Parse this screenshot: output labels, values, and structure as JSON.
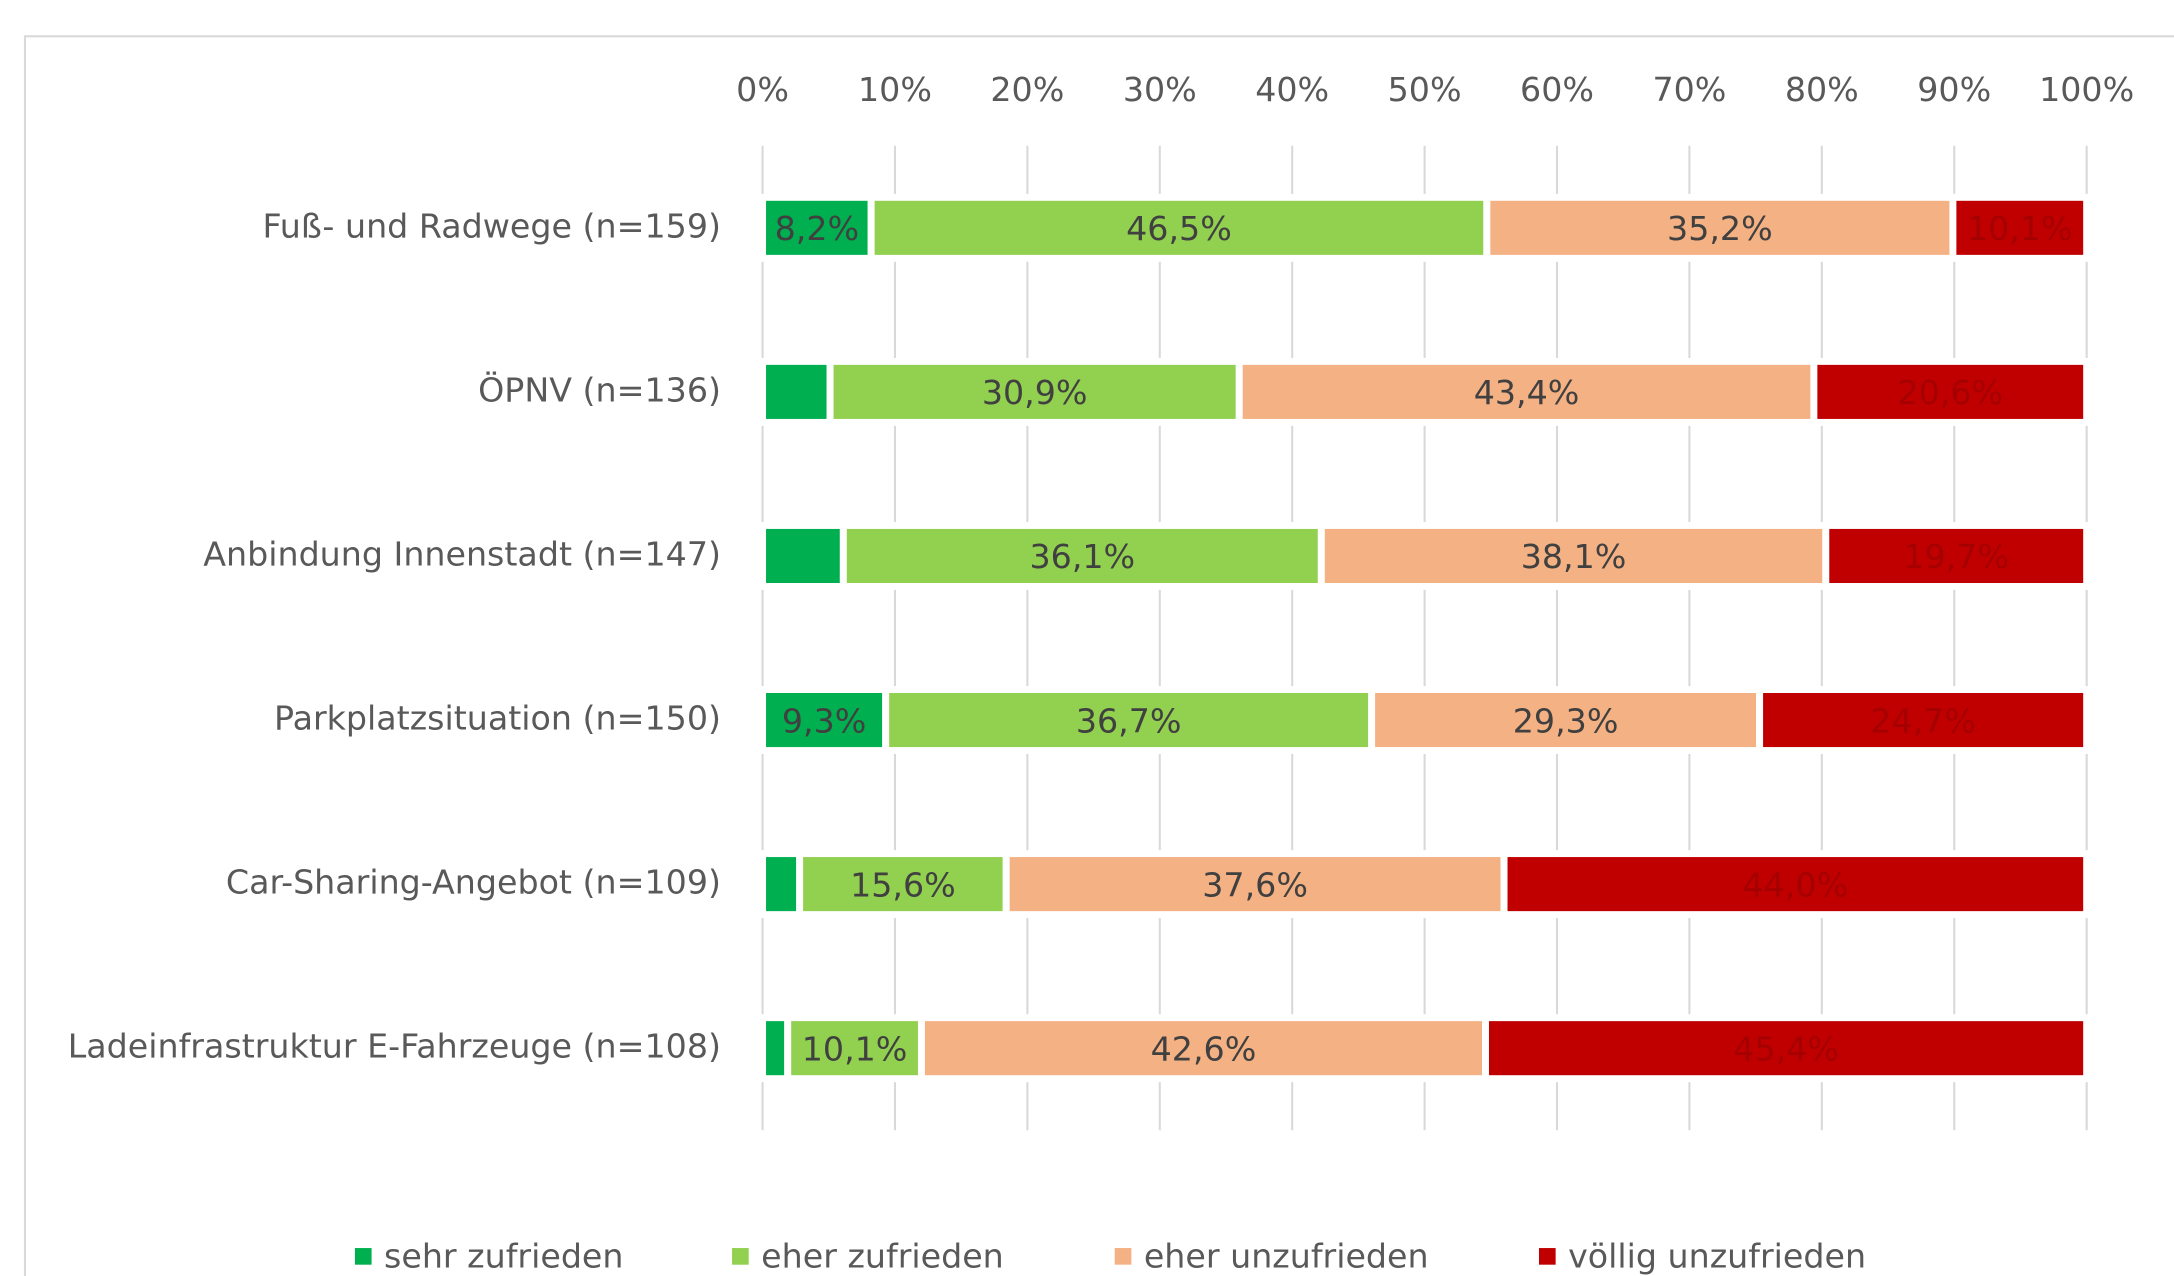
{
  "chart_data": {
    "type": "stacked-bar-horizontal",
    "categories": [
      "Fuß- und Radwege (n=159)",
      "ÖPNV (n=136)",
      "Anbindung Innenstadt (n=147)",
      "Parkplatzsituation (n=150)",
      "Car-Sharing-Angebot (n=109)",
      "Ladeinfrastruktur E-Fahrzeuge (n=108)"
    ],
    "series": [
      {
        "name": "sehr zufrieden",
        "color": "#00b050",
        "values": [
          8.2,
          5.1,
          6.1,
          9.3,
          2.8,
          1.9
        ],
        "value_labels": [
          "8,2%",
          null,
          null,
          "9,3%",
          null,
          null
        ]
      },
      {
        "name": "eher zufrieden",
        "color": "#92d050",
        "values": [
          46.5,
          30.9,
          36.1,
          36.7,
          15.6,
          10.1
        ],
        "value_labels": [
          "46,5%",
          "30,9%",
          "36,1%",
          "36,7%",
          "15,6%",
          "10,1%"
        ]
      },
      {
        "name": "eher unzufrieden",
        "color": "#f4b183",
        "values": [
          35.2,
          43.4,
          38.1,
          29.3,
          37.6,
          42.6
        ],
        "value_labels": [
          "35,2%",
          "43,4%",
          "38,1%",
          "29,3%",
          "37,6%",
          "42,6%"
        ]
      },
      {
        "name": "völlig unzufrieden",
        "color": "#c00000",
        "values": [
          10.1,
          20.6,
          19.7,
          24.7,
          44.0,
          45.4
        ],
        "value_labels": [
          "10,1%",
          "20,6%",
          "19,7%",
          "24,7%",
          "44,0%",
          "45,4%"
        ]
      }
    ],
    "xlim": [
      0,
      100
    ],
    "xticks": [
      {
        "value": 0,
        "label": "0%"
      },
      {
        "value": 10,
        "label": "10%"
      },
      {
        "value": 20,
        "label": "20%"
      },
      {
        "value": 30,
        "label": "30%"
      },
      {
        "value": 40,
        "label": "40%"
      },
      {
        "value": 50,
        "label": "50%"
      },
      {
        "value": 60,
        "label": "60%"
      },
      {
        "value": 70,
        "label": "70%"
      },
      {
        "value": 80,
        "label": "80%"
      },
      {
        "value": 90,
        "label": "90%"
      },
      {
        "value": 100,
        "label": "100%"
      }
    ],
    "grid": true,
    "legend": "bottom"
  }
}
